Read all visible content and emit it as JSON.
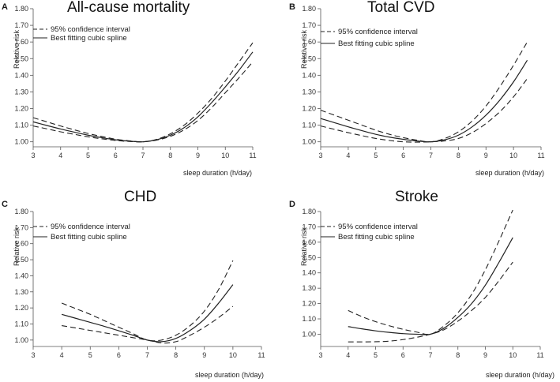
{
  "figure": {
    "legend": {
      "ci_label": "95% confidence interval",
      "spline_label": "Best fitting cubic spline"
    }
  },
  "chart_data": [
    {
      "type": "line",
      "panel_letter": "A",
      "title": "All-cause mortality",
      "xlabel": "sleep duration (h/day)",
      "ylabel": "Relative risk",
      "xlim": [
        3,
        11
      ],
      "ylim": [
        0.97,
        1.8
      ],
      "xticks": [
        3,
        4,
        5,
        6,
        7,
        8,
        9,
        10,
        11
      ],
      "yticks": [
        1.0,
        1.1,
        1.2,
        1.3,
        1.4,
        1.5,
        1.6,
        1.7,
        1.8
      ],
      "ytick_labels": [
        "1.00",
        "1.10",
        "1.20",
        "1.30",
        "1.40",
        "1.50",
        "1.60",
        "1.70",
        "1.80"
      ],
      "series": [
        {
          "name": "Best fitting cubic spline",
          "style": "solid",
          "x": [
            3,
            3.5,
            4,
            4.5,
            5,
            5.5,
            6,
            6.5,
            7,
            7.5,
            8,
            8.5,
            9,
            9.5,
            10,
            10.5,
            11
          ],
          "y": [
            1.12,
            1.098,
            1.077,
            1.058,
            1.04,
            1.025,
            1.012,
            1.004,
            1.0,
            1.012,
            1.04,
            1.085,
            1.15,
            1.235,
            1.33,
            1.43,
            1.54
          ]
        },
        {
          "name": "95% confidence interval (upper)",
          "style": "dashed",
          "x": [
            3,
            3.5,
            4,
            4.5,
            5,
            5.5,
            6,
            6.5,
            7,
            7.5,
            8,
            8.5,
            9,
            9.5,
            10,
            10.5,
            11
          ],
          "y": [
            1.145,
            1.12,
            1.095,
            1.072,
            1.05,
            1.032,
            1.016,
            1.006,
            1.0,
            1.015,
            1.048,
            1.1,
            1.172,
            1.26,
            1.365,
            1.48,
            1.595
          ]
        },
        {
          "name": "95% confidence interval (lower)",
          "style": "dashed",
          "x": [
            3,
            3.5,
            4,
            4.5,
            5,
            5.5,
            6,
            6.5,
            7,
            7.5,
            8,
            8.5,
            9,
            9.5,
            10,
            10.5,
            11
          ],
          "y": [
            1.095,
            1.078,
            1.06,
            1.045,
            1.03,
            1.018,
            1.008,
            1.002,
            1.0,
            1.01,
            1.033,
            1.072,
            1.128,
            1.205,
            1.295,
            1.385,
            1.48
          ]
        }
      ]
    },
    {
      "type": "line",
      "panel_letter": "B",
      "title": "Total CVD",
      "xlabel": "sleep duration (h/day)",
      "ylabel": "Relative risk",
      "xlim": [
        3,
        11
      ],
      "ylim": [
        0.97,
        1.8
      ],
      "xticks": [
        3,
        4,
        5,
        6,
        7,
        8,
        9,
        10,
        11
      ],
      "yticks": [
        1.0,
        1.1,
        1.2,
        1.3,
        1.4,
        1.5,
        1.6,
        1.7,
        1.8
      ],
      "ytick_labels": [
        "1.00",
        "1.10",
        "1.20",
        "1.30",
        "1.40",
        "1.50",
        "1.60",
        "1.70",
        "1.80"
      ],
      "series": [
        {
          "name": "Best fitting cubic spline",
          "style": "solid",
          "x": [
            3,
            3.5,
            4,
            4.5,
            5,
            5.5,
            6,
            6.5,
            7,
            7.5,
            8,
            8.5,
            9,
            9.5,
            10,
            10.5
          ],
          "y": [
            1.14,
            1.115,
            1.09,
            1.067,
            1.045,
            1.028,
            1.015,
            1.005,
            1.0,
            1.012,
            1.04,
            1.09,
            1.16,
            1.25,
            1.36,
            1.49
          ]
        },
        {
          "name": "95% confidence interval (upper)",
          "style": "dashed",
          "x": [
            3,
            3.5,
            4,
            4.5,
            5,
            5.5,
            6,
            6.5,
            7,
            7.5,
            8,
            8.5,
            9,
            9.5,
            10,
            10.5
          ],
          "y": [
            1.19,
            1.16,
            1.13,
            1.1,
            1.07,
            1.045,
            1.025,
            1.01,
            1.0,
            1.02,
            1.06,
            1.125,
            1.215,
            1.33,
            1.46,
            1.6
          ]
        },
        {
          "name": "95% confidence interval (lower)",
          "style": "dashed",
          "x": [
            3,
            3.5,
            4,
            4.5,
            5,
            5.5,
            6,
            6.5,
            7,
            7.5,
            8,
            8.5,
            9,
            9.5,
            10,
            10.5
          ],
          "y": [
            1.095,
            1.075,
            1.055,
            1.037,
            1.02,
            1.008,
            1.0,
            0.998,
            1.0,
            1.005,
            1.02,
            1.055,
            1.11,
            1.18,
            1.27,
            1.38
          ]
        }
      ]
    },
    {
      "type": "line",
      "panel_letter": "C",
      "title": "CHD",
      "xlabel": "sleep duration (h/day)",
      "ylabel": "Relative risk",
      "xlim": [
        3,
        11
      ],
      "ylim": [
        0.96,
        1.8
      ],
      "xticks": [
        3,
        4,
        5,
        6,
        7,
        8,
        9,
        10,
        11
      ],
      "yticks": [
        1.0,
        1.1,
        1.2,
        1.3,
        1.4,
        1.5,
        1.6,
        1.7,
        1.8
      ],
      "ytick_labels": [
        "1.00",
        "1.10",
        "1.20",
        "1.30",
        "1.40",
        "1.50",
        "1.60",
        "1.70",
        "1.80"
      ],
      "series": [
        {
          "name": "Best fitting cubic spline",
          "style": "solid",
          "x": [
            4,
            4.5,
            5,
            5.5,
            6,
            6.5,
            7,
            7.5,
            8,
            8.5,
            9,
            9.5,
            10
          ],
          "y": [
            1.16,
            1.135,
            1.11,
            1.085,
            1.058,
            1.03,
            1.0,
            0.99,
            1.01,
            1.06,
            1.13,
            1.23,
            1.345
          ]
        },
        {
          "name": "95% confidence interval (upper)",
          "style": "dashed",
          "x": [
            4,
            4.5,
            5,
            5.5,
            6,
            6.5,
            7,
            7.5,
            8,
            8.5,
            9,
            9.5,
            10
          ],
          "y": [
            1.23,
            1.195,
            1.16,
            1.12,
            1.08,
            1.04,
            1.0,
            1.0,
            1.03,
            1.09,
            1.18,
            1.315,
            1.495
          ]
        },
        {
          "name": "95% confidence interval (lower)",
          "style": "dashed",
          "x": [
            4,
            4.5,
            5,
            5.5,
            6,
            6.5,
            7,
            7.5,
            8,
            8.5,
            9,
            9.5,
            10
          ],
          "y": [
            1.09,
            1.075,
            1.06,
            1.045,
            1.03,
            1.015,
            1.0,
            0.982,
            0.99,
            1.03,
            1.08,
            1.14,
            1.21
          ]
        }
      ]
    },
    {
      "type": "line",
      "panel_letter": "D",
      "title": "Stroke",
      "xlabel": "sleep duration (h/day)",
      "ylabel": "Relative risk",
      "xlim": [
        3,
        11
      ],
      "ylim": [
        0.92,
        1.8
      ],
      "xticks": [
        3,
        4,
        5,
        6,
        7,
        8,
        9,
        10,
        11
      ],
      "yticks": [
        1.0,
        1.1,
        1.2,
        1.3,
        1.4,
        1.5,
        1.6,
        1.7,
        1.8
      ],
      "ytick_labels": [
        "1.00",
        "1.10",
        "1.20",
        "1.30",
        "1.40",
        "1.50",
        "1.60",
        "1.70",
        "1.80"
      ],
      "series": [
        {
          "name": "Best fitting cubic spline",
          "style": "solid",
          "x": [
            4,
            4.5,
            5,
            5.5,
            6,
            6.5,
            7,
            7.5,
            8,
            8.5,
            9,
            9.5,
            10
          ],
          "y": [
            1.05,
            1.035,
            1.022,
            1.012,
            1.004,
            1.0,
            1.0,
            1.04,
            1.11,
            1.2,
            1.32,
            1.47,
            1.63
          ]
        },
        {
          "name": "95% confidence interval (upper)",
          "style": "dashed",
          "x": [
            4,
            4.5,
            5,
            5.5,
            6,
            6.5,
            7,
            7.5,
            8,
            8.5,
            9,
            9.5,
            10
          ],
          "y": [
            1.155,
            1.115,
            1.082,
            1.055,
            1.032,
            1.014,
            1.0,
            1.055,
            1.14,
            1.26,
            1.42,
            1.61,
            1.81
          ]
        },
        {
          "name": "95% confidence interval (lower)",
          "style": "dashed",
          "x": [
            4,
            4.5,
            5,
            5.5,
            6,
            6.5,
            7,
            7.5,
            8,
            8.5,
            9,
            9.5,
            10
          ],
          "y": [
            0.95,
            0.95,
            0.951,
            0.955,
            0.965,
            0.98,
            1.0,
            1.03,
            1.085,
            1.155,
            1.24,
            1.35,
            1.47
          ]
        }
      ]
    }
  ]
}
